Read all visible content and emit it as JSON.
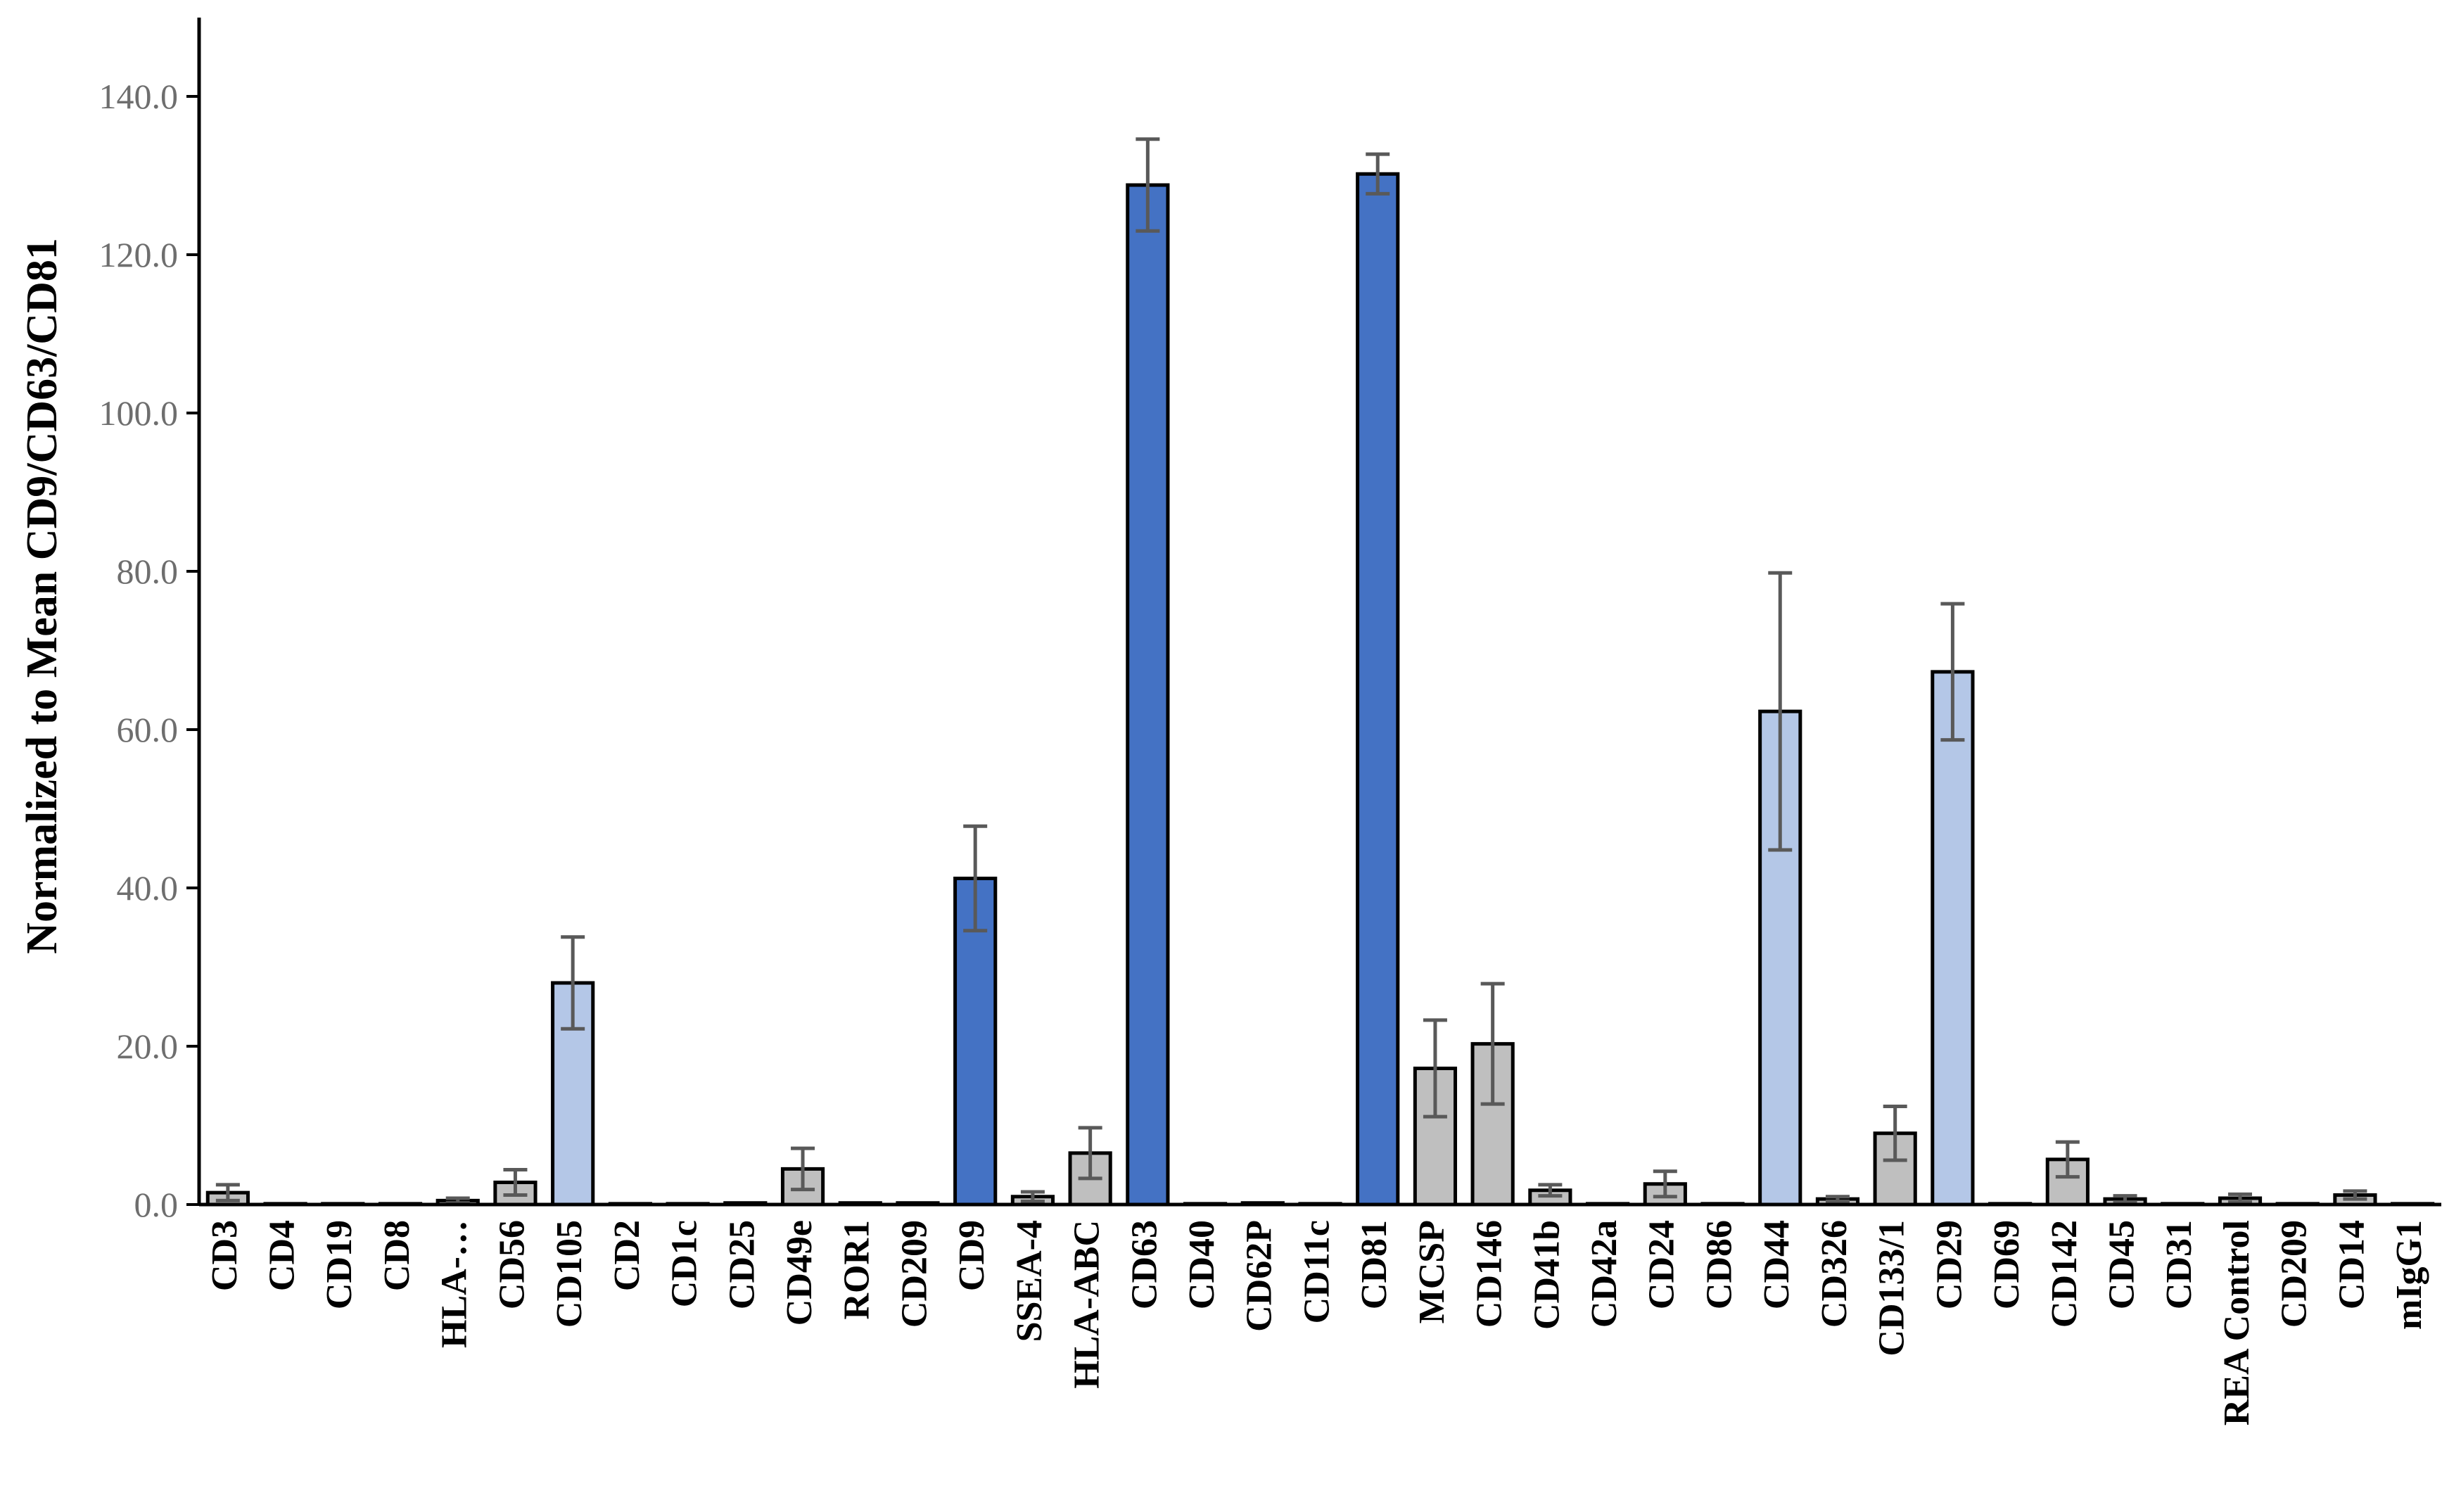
{
  "chart_data": {
    "type": "bar",
    "ylabel": "Normalized to Mean  CD9/CD63/CD81",
    "xlabel": "",
    "ylim": [
      0,
      150
    ],
    "yticks": [
      0,
      20,
      40,
      60,
      80,
      100,
      120,
      140
    ],
    "ytick_labels": [
      "0.0",
      "20.0",
      "40.0",
      "60.0",
      "80.0",
      "100.0",
      "120.0",
      "140.0"
    ],
    "grid": false,
    "legend": "none",
    "colors": {
      "dark_blue": "#4472c4",
      "light_blue": "#b4c7e7",
      "gray": "#bfbfbf",
      "bar_outline": "#000000",
      "error_bar": "#595959",
      "axis": "#000000"
    },
    "categories": [
      "CD3",
      "CD4",
      "CD19",
      "CD8",
      "HLA-…",
      "CD56",
      "CD105",
      "CD2",
      "CD1c",
      "CD25",
      "CD49e",
      "ROR1",
      "CD209",
      "CD9",
      "SSEA-4",
      "HLA-ABC",
      "CD63",
      "CD40",
      "CD62P",
      "CD11c",
      "CD81",
      "MCSP",
      "CD146",
      "CD41b",
      "CD42a",
      "CD24",
      "CD86",
      "CD44",
      "CD326",
      "CD133/1",
      "CD29",
      "CD69",
      "CD142",
      "CD45",
      "CD31",
      "REA Control",
      "CD209",
      "CD14",
      "mIgG1"
    ],
    "values": [
      1.5,
      0.1,
      0.1,
      0.1,
      0.5,
      2.8,
      28.0,
      0.1,
      0.1,
      0.2,
      4.5,
      0.2,
      0.2,
      41.2,
      1.0,
      6.5,
      128.8,
      0.1,
      0.2,
      0.1,
      130.2,
      17.2,
      20.3,
      1.8,
      0.1,
      2.6,
      0.1,
      62.3,
      0.7,
      9.0,
      67.3,
      0.1,
      5.7,
      0.7,
      0.1,
      0.8,
      0.1,
      1.2,
      0.1
    ],
    "errors": [
      1.0,
      0,
      0,
      0,
      0.3,
      1.6,
      5.8,
      0,
      0,
      0,
      2.6,
      0,
      0,
      6.6,
      0.6,
      3.2,
      5.8,
      0,
      0,
      0,
      2.5,
      6.1,
      7.6,
      0.7,
      0,
      1.6,
      0,
      17.5,
      0.3,
      3.4,
      8.6,
      0,
      2.2,
      0.4,
      0,
      0.5,
      0,
      0.5,
      0
    ],
    "bar_color_keys": [
      "gray",
      "gray",
      "gray",
      "gray",
      "gray",
      "gray",
      "light_blue",
      "gray",
      "gray",
      "gray",
      "gray",
      "gray",
      "gray",
      "dark_blue",
      "gray",
      "gray",
      "dark_blue",
      "gray",
      "gray",
      "gray",
      "dark_blue",
      "gray",
      "gray",
      "gray",
      "gray",
      "gray",
      "gray",
      "light_blue",
      "gray",
      "gray",
      "light_blue",
      "gray",
      "gray",
      "gray",
      "gray",
      "gray",
      "gray",
      "gray",
      "gray"
    ]
  }
}
